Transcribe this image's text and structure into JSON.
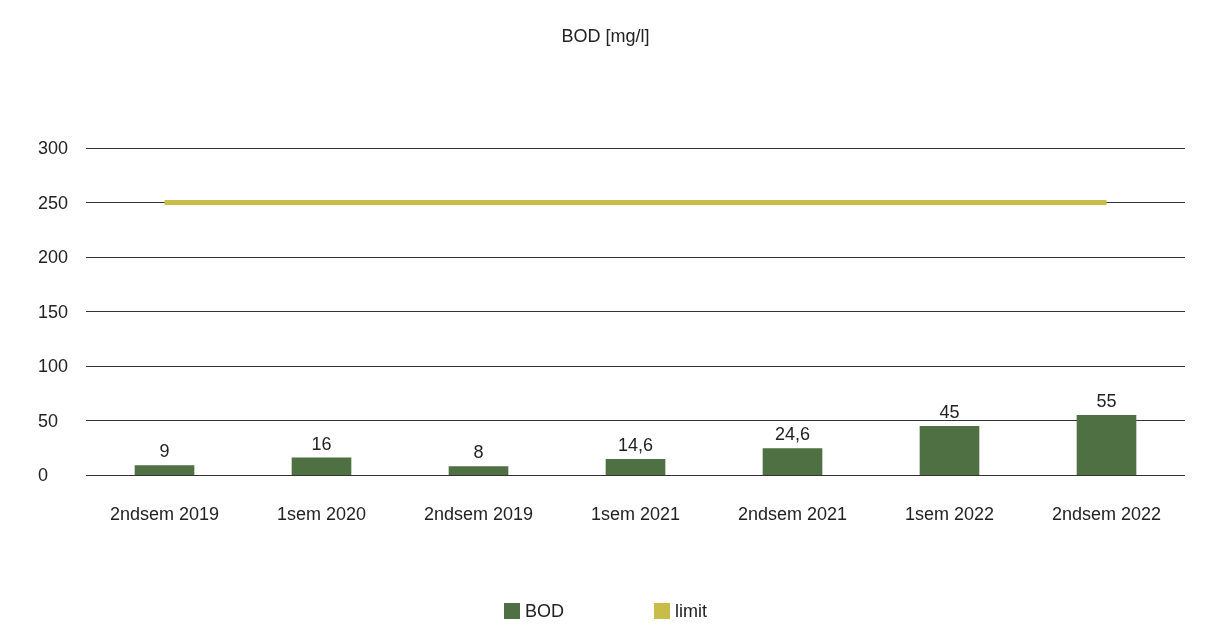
{
  "chart_data": {
    "type": "bar",
    "title": "BOD [mg/l]",
    "categories": [
      "2ndsem 2019",
      "1sem 2020",
      "2ndsem 2019",
      "1sem 2021",
      "2ndsem 2021",
      "1sem 2022",
      "2ndsem 2022"
    ],
    "series": [
      {
        "name": "BOD",
        "color": "#4e7043",
        "values": [
          9,
          16,
          8,
          14.6,
          24.6,
          45,
          55
        ],
        "value_labels": [
          "9",
          "16",
          "8",
          "14,6",
          "24,6",
          "45",
          "55"
        ]
      },
      {
        "name": "limit",
        "type": "line",
        "color": "#c9bd4a",
        "values": [
          250,
          250,
          250,
          250,
          250,
          250,
          250
        ]
      }
    ],
    "ylim": [
      0,
      300
    ],
    "yticks": [
      0,
      50,
      100,
      150,
      200,
      250,
      300
    ],
    "grid": "y",
    "legend": "bottom",
    "marker": "none"
  }
}
